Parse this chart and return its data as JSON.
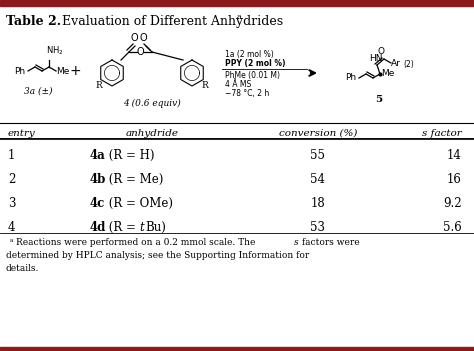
{
  "title_bold": "Table 2.",
  "title_rest": " Evaluation of Different Anhydrides",
  "title_super": "a",
  "col_headers": [
    "entry",
    "anhydride",
    "conversion (%)",
    "s factor"
  ],
  "rows": [
    [
      "1",
      "4a",
      " (R = H)",
      "55",
      "14"
    ],
    [
      "2",
      "4b",
      " (R = Me)",
      "54",
      "16"
    ],
    [
      "3",
      "4c",
      " (R = OMe)",
      "18",
      "9.2"
    ],
    [
      "4",
      "4d",
      " (R = ",
      "t",
      "Bu)",
      "53",
      "5.6"
    ]
  ],
  "footnote_super": "a",
  "footnote_text": " Reactions were performed on a 0.2 mmol scale. The ",
  "footnote_s": "s",
  "footnote_end": " factors were\ndetermined by HPLC analysis; see the Supporting Information for\ndetails.",
  "top_bar_color": "#8b1a1a",
  "bottom_bar_color": "#8b1a1a",
  "fig_width": 4.74,
  "fig_height": 3.51,
  "dpi": 100
}
